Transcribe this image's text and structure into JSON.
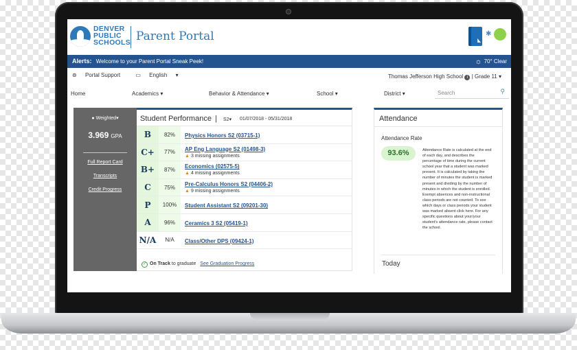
{
  "header": {
    "logo_lines": [
      "DENVER",
      "PUBLIC",
      "SCHOOLS"
    ],
    "title": "Parent Portal"
  },
  "alert": {
    "label": "Alerts:",
    "message": "Welcome to your Parent Portal Sneak Peek!",
    "weather": "70° Clear"
  },
  "utility": {
    "support": "Portal Support",
    "language": "English",
    "school": "Thomas Jefferson High School",
    "grade": "| Grade 11"
  },
  "nav": {
    "items": [
      "Home",
      "Academics",
      "Behavior & Attendance",
      "School",
      "District"
    ],
    "search_placeholder": "Search"
  },
  "gpa_panel": {
    "mode": "Weighted",
    "gpa_value": "3.969",
    "gpa_suffix": "GPA",
    "links": [
      "Full Report Card",
      "Transcripts",
      "Credit Progress"
    ]
  },
  "performance": {
    "title": "Student Performance",
    "separator": "|",
    "term": "S2",
    "dates": "01/07/2018 - 05/31/2018",
    "courses": [
      {
        "grade": "B",
        "percent": "82%",
        "name": "Physics Honors S2 (03715-1)",
        "missing": ""
      },
      {
        "grade": "C+",
        "percent": "77%",
        "name": "AP Eng Language S2 (01498-3)",
        "missing": "3 missing assignments"
      },
      {
        "grade": "B+",
        "percent": "87%",
        "name": "Economics (02575-5)",
        "missing": "4 missing assignments"
      },
      {
        "grade": "C",
        "percent": "75%",
        "name": "Pre-Calculus Honors S2 (04406-2)",
        "missing": "9 missing assignments"
      },
      {
        "grade": "P",
        "percent": "100%",
        "name": "Student Assistant S2 (09201-30)",
        "missing": ""
      },
      {
        "grade": "A",
        "percent": "96%",
        "name": "Ceramics 3 S2 (05419-1)",
        "missing": ""
      },
      {
        "grade": "N/A",
        "percent": "N/A",
        "name": "Class/Other DPS (09424-1)",
        "missing": ""
      }
    ],
    "on_track": "On Track",
    "on_track_rest": "to graduate",
    "graduation_link": "See Graduation Progress"
  },
  "attendance": {
    "title": "Attendance",
    "rate_label": "Attendance Rate",
    "rate_value": "93.6%",
    "description": "Attendance Rate is calculated at the end of each day, and describes the percentage of time during the current school year that a student was marked present. It is calculated by taking the number of minutes the student is marked present and dividing by the number of minutes in which the student is enrolled. Exempt absences and non-instructional class periods are not counted. To see which days or class periods your student was marked absent click here. For any specific questions about your/your student's attendance rate, please contact the school.",
    "today_label": "Today"
  }
}
